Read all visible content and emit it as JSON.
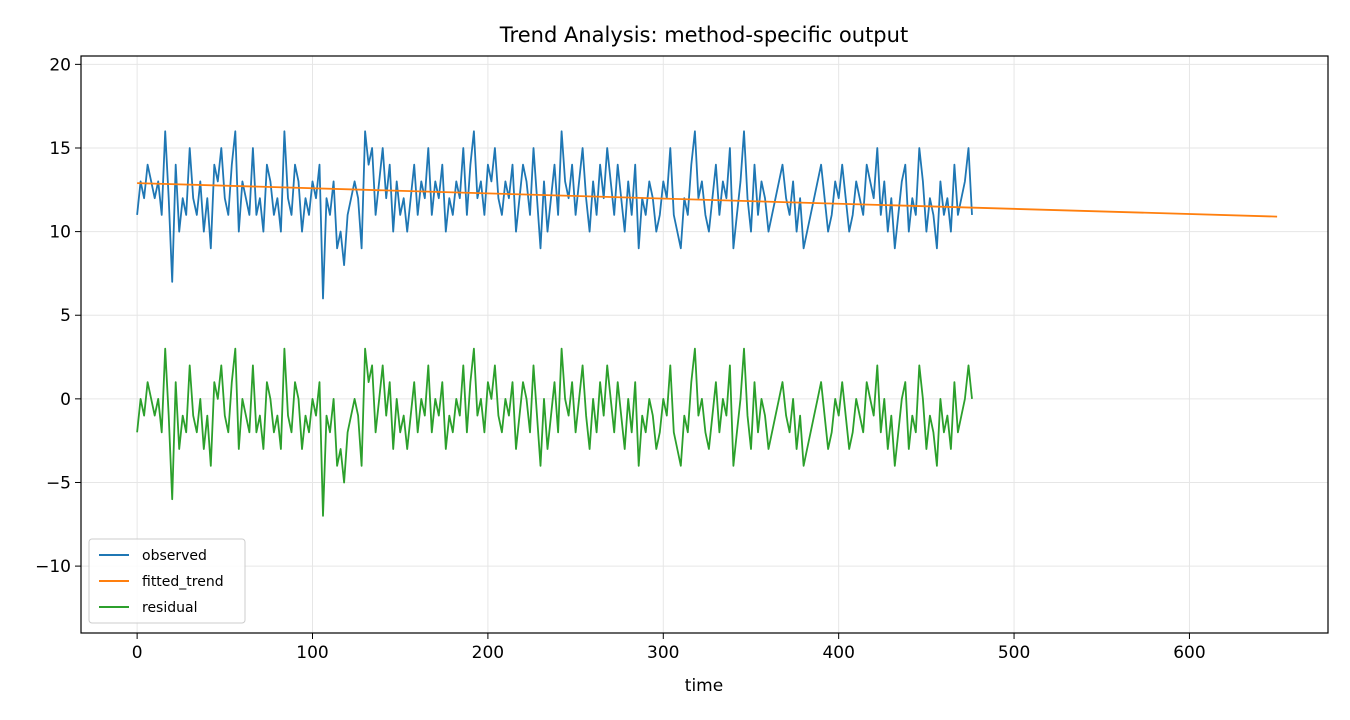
{
  "chart_data": {
    "type": "line",
    "title": "Trend Analysis: method-specific output",
    "xlabel": "time",
    "ylabel": "",
    "xlim": [
      -32,
      679
    ],
    "ylim": [
      -14,
      20.5
    ],
    "xticks": [
      0,
      100,
      200,
      300,
      400,
      500,
      600
    ],
    "yticks": [
      -10,
      -5,
      0,
      5,
      10,
      15,
      20
    ],
    "ytick_labels": [
      "−10",
      "−5",
      "0",
      "5",
      "10",
      "15",
      "20"
    ],
    "grid": true,
    "legend_position": "lower-left",
    "colors": {
      "observed": "#1f77b4",
      "fitted_trend": "#ff7f0e",
      "residual": "#2ca02c"
    },
    "series": [
      {
        "name": "observed",
        "x_start": 0,
        "x_step": 2,
        "values": [
          11,
          13,
          12,
          14,
          13,
          12,
          13,
          11,
          16,
          12,
          7,
          14,
          10,
          12,
          11,
          15,
          12,
          11,
          13,
          10,
          12,
          9,
          14,
          13,
          15,
          12,
          11,
          14,
          16,
          10,
          13,
          12,
          11,
          15,
          11,
          12,
          10,
          14,
          13,
          11,
          12,
          10,
          16,
          12,
          11,
          14,
          13,
          10,
          12,
          11,
          13,
          12,
          14,
          6,
          12,
          11,
          13,
          9,
          10,
          8,
          11,
          12,
          13,
          12,
          9,
          16,
          14,
          15,
          11,
          13,
          15,
          12,
          14,
          10,
          13,
          11,
          12,
          10,
          12,
          14,
          11,
          13,
          12,
          15,
          11,
          13,
          12,
          14,
          10,
          12,
          11,
          13,
          12,
          15,
          11,
          14,
          16,
          12,
          13,
          11,
          14,
          13,
          15,
          12,
          11,
          13,
          12,
          14,
          10,
          12,
          14,
          13,
          11,
          15,
          12,
          9,
          13,
          10,
          12,
          14,
          11,
          16,
          13,
          12,
          14,
          11,
          13,
          15,
          12,
          10,
          13,
          11,
          14,
          12,
          15,
          13,
          11,
          14,
          12,
          10,
          13,
          11,
          14,
          9,
          12,
          11,
          13,
          12,
          10,
          11,
          13,
          12,
          15,
          11,
          10,
          9,
          12,
          11,
          14,
          16,
          12,
          13,
          11,
          10,
          12,
          14,
          11,
          13,
          12,
          15,
          9,
          11,
          13,
          16,
          12,
          10,
          14,
          11,
          13,
          12,
          10,
          11,
          12,
          13,
          14,
          12,
          11,
          13,
          10,
          12,
          9,
          10,
          11,
          12,
          13,
          14,
          12,
          10,
          11,
          13,
          12,
          14,
          12,
          10,
          11,
          13,
          12,
          11,
          14,
          13,
          12,
          15,
          11,
          13,
          10,
          12,
          9,
          11,
          13,
          14,
          10,
          12,
          11,
          15,
          13,
          10,
          12,
          11,
          9,
          13,
          11,
          12,
          10,
          14,
          11,
          12,
          13,
          15,
          11
        ]
      },
      {
        "name": "fitted_trend",
        "x": [
          0,
          650
        ],
        "y": [
          12.9,
          10.9
        ]
      },
      {
        "name": "residual",
        "x_start": 0,
        "x_step": 2,
        "values": [
          -2,
          0,
          -1,
          1,
          0,
          -1,
          0,
          -2,
          3,
          -1,
          -6,
          1,
          -3,
          -1,
          -2,
          2,
          -1,
          -2,
          0,
          -3,
          -1,
          -4,
          1,
          0,
          2,
          -1,
          -2,
          1,
          3,
          -3,
          0,
          -1,
          -2,
          2,
          -2,
          -1,
          -3,
          1,
          0,
          -2,
          -1,
          -3,
          3,
          -1,
          -2,
          1,
          0,
          -3,
          -1,
          -2,
          0,
          -1,
          1,
          -7,
          -1,
          -2,
          0,
          -4,
          -3,
          -5,
          -2,
          -1,
          0,
          -1,
          -4,
          3,
          1,
          2,
          -2,
          0,
          2,
          -1,
          1,
          -3,
          0,
          -2,
          -1,
          -3,
          -1,
          1,
          -2,
          0,
          -1,
          2,
          -2,
          0,
          -1,
          1,
          -3,
          -1,
          -2,
          0,
          -1,
          2,
          -2,
          1,
          3,
          -1,
          0,
          -2,
          1,
          0,
          2,
          -1,
          -2,
          0,
          -1,
          1,
          -3,
          -1,
          1,
          0,
          -2,
          2,
          -1,
          -4,
          0,
          -3,
          -1,
          1,
          -2,
          3,
          0,
          -1,
          1,
          -2,
          0,
          2,
          -1,
          -3,
          0,
          -2,
          1,
          -1,
          2,
          0,
          -2,
          1,
          -1,
          -3,
          0,
          -2,
          1,
          -4,
          -1,
          -2,
          0,
          -1,
          -3,
          -2,
          0,
          -1,
          2,
          -2,
          -3,
          -4,
          -1,
          -2,
          1,
          3,
          -1,
          0,
          -2,
          -3,
          -1,
          1,
          -2,
          0,
          -1,
          2,
          -4,
          -2,
          0,
          3,
          -1,
          -3,
          1,
          -2,
          0,
          -1,
          -3,
          -2,
          -1,
          0,
          1,
          -1,
          -2,
          0,
          -3,
          -1,
          -4,
          -3,
          -2,
          -1,
          0,
          1,
          -1,
          -3,
          -2,
          0,
          -1,
          1,
          -1,
          -3,
          -2,
          0,
          -1,
          -2,
          1,
          0,
          -1,
          2,
          -2,
          0,
          -3,
          -1,
          -4,
          -2,
          0,
          1,
          -3,
          -1,
          -2,
          2,
          0,
          -3,
          -1,
          -2,
          -4,
          0,
          -2,
          -1,
          -3,
          1,
          -2,
          -1,
          0,
          2,
          0
        ]
      }
    ]
  }
}
